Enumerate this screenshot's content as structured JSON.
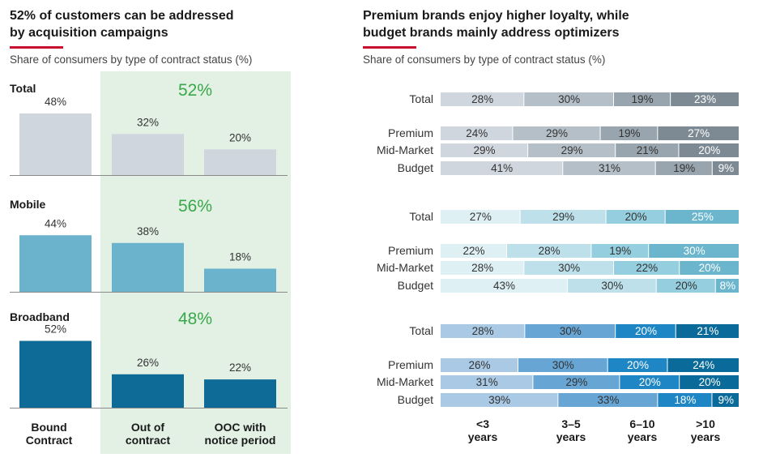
{
  "left": {
    "title_line1": "52% of customers can be addressed",
    "title_line2": "by acquisition campaigns",
    "subtitle": "Share of consumers by type of contract status (%)"
  },
  "right": {
    "title_line1": "Premium brands enjoy higher loyalty, while",
    "title_line2": "budget brands mainly address optimizers",
    "subtitle": "Share of consumers by type of contract status (%)"
  },
  "colors": {
    "highlight_bg": "#e2f1e4",
    "highlight_text": "#3aa84a",
    "total": [
      "#d0d6de",
      "#b4bfc8",
      "#98a5ae",
      "#7d8a93"
    ],
    "mobile": [
      "#dff0f5",
      "#bde0eb",
      "#95cfdf",
      "#6bb6cd"
    ],
    "broadband": [
      "#a9c9e4",
      "#67a5d4",
      "#1e86c4",
      "#0a6a9a"
    ],
    "left_bars": [
      "#d0d6de",
      "#6bb3cd",
      "#0e6a96"
    ]
  },
  "chart_data": [
    {
      "type": "bar",
      "categories": [
        "Bound\nContract",
        "Out of\ncontract",
        "OOC with\nnotice period"
      ],
      "groups": [
        {
          "name": "Total",
          "values": [
            48,
            32,
            20
          ],
          "addressable": "52%"
        },
        {
          "name": "Mobile",
          "values": [
            44,
            38,
            18
          ],
          "addressable": "56%"
        },
        {
          "name": "Broadband",
          "values": [
            52,
            26,
            22
          ],
          "addressable": "48%"
        }
      ]
    },
    {
      "type": "bar",
      "orientation": "horizontal-stacked",
      "categories": [
        "<3\nyears",
        "3–5\nyears",
        "6–10\nyears",
        ">10\nyears"
      ],
      "blocks": [
        {
          "group": "Total",
          "rows": [
            {
              "label": "Total",
              "values": [
                28,
                30,
                19,
                23
              ]
            },
            {
              "label": "Premium",
              "values": [
                24,
                29,
                19,
                27
              ]
            },
            {
              "label": "Mid-Market",
              "values": [
                29,
                29,
                21,
                20
              ]
            },
            {
              "label": "Budget",
              "values": [
                41,
                31,
                19,
                9
              ]
            }
          ]
        },
        {
          "group": "Mobile",
          "rows": [
            {
              "label": "Total",
              "values": [
                27,
                29,
                20,
                25
              ]
            },
            {
              "label": "Premium",
              "values": [
                22,
                28,
                19,
                30
              ]
            },
            {
              "label": "Mid-Market",
              "values": [
                28,
                30,
                22,
                20
              ]
            },
            {
              "label": "Budget",
              "values": [
                43,
                30,
                20,
                8
              ]
            }
          ]
        },
        {
          "group": "Broadband",
          "rows": [
            {
              "label": "Total",
              "values": [
                28,
                30,
                20,
                21
              ]
            },
            {
              "label": "Premium",
              "values": [
                26,
                30,
                20,
                24
              ]
            },
            {
              "label": "Mid-Market",
              "values": [
                31,
                29,
                20,
                20
              ]
            },
            {
              "label": "Budget",
              "values": [
                39,
                33,
                18,
                9
              ]
            }
          ]
        }
      ]
    }
  ]
}
